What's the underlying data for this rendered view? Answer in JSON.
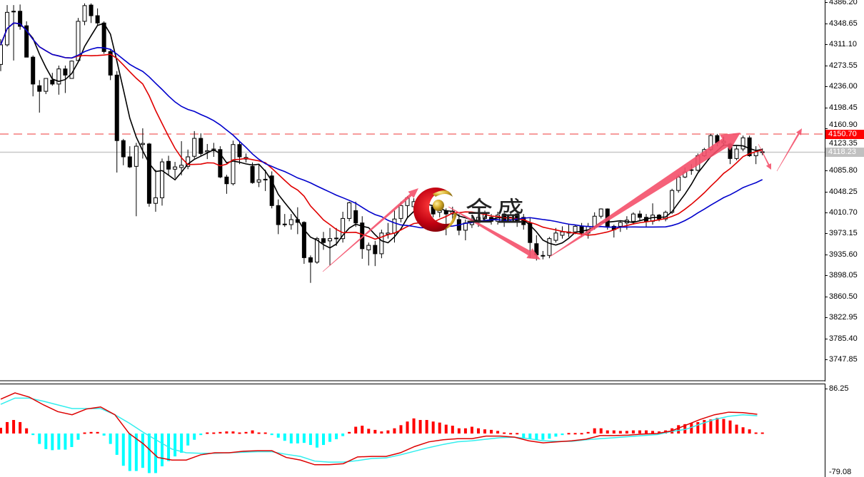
{
  "chart_data": {
    "type": "candlestick",
    "ylim": [
      3709.0,
      4390.05
    ],
    "y_ticks": [
      "4386.20",
      "4348.65",
      "4311.10",
      "4273.55",
      "4236.00",
      "4198.45",
      "4160.90",
      "4123.35",
      "4085.80",
      "4048.25",
      "4010.70",
      "3973.15",
      "3935.60",
      "3898.05",
      "3860.50",
      "3822.95",
      "3785.40",
      "3747.85"
    ],
    "candles": [
      [
        4275,
        4320,
        4263,
        4310
      ],
      [
        4310,
        4381,
        4307,
        4368
      ],
      [
        4370,
        4381,
        4282,
        4369
      ],
      [
        4370,
        4382,
        4337,
        4343
      ],
      [
        4344,
        4352,
        4288,
        4288
      ],
      [
        4288,
        4291,
        4218,
        4240
      ],
      [
        4237,
        4247,
        4189,
        4227
      ],
      [
        4227,
        4250,
        4222,
        4250
      ],
      [
        4247,
        4260,
        4237,
        4240
      ],
      [
        4240,
        4273,
        4221,
        4267
      ],
      [
        4267,
        4273,
        4224,
        4256
      ],
      [
        4250,
        4282,
        4250,
        4281
      ],
      [
        4282,
        4358,
        4278,
        4352
      ],
      [
        4352,
        4384,
        4345,
        4380
      ],
      [
        4381,
        4384,
        4349,
        4362
      ],
      [
        4362,
        4375,
        4345,
        4349
      ],
      [
        4349,
        4352,
        4294,
        4298
      ],
      [
        4298,
        4301,
        4247,
        4256
      ],
      [
        4256,
        4263,
        4082,
        4139
      ],
      [
        4139,
        4142,
        4095,
        4110
      ],
      [
        4110,
        4129,
        4090,
        4092
      ],
      [
        4093,
        4135,
        4004,
        4129
      ],
      [
        4132,
        4161,
        4107,
        4134
      ],
      [
        4133,
        4135,
        4021,
        4027
      ],
      [
        4027,
        4087,
        4012,
        4037
      ],
      [
        4037,
        4107,
        4023,
        4101
      ],
      [
        4102,
        4112,
        4078,
        4088
      ],
      [
        4088,
        4101,
        4072,
        4092
      ],
      [
        4091,
        4138,
        4077,
        4095
      ],
      [
        4093,
        4123,
        4088,
        4110
      ],
      [
        4111,
        4156,
        4107,
        4143
      ],
      [
        4143,
        4152,
        4112,
        4116
      ],
      [
        4119,
        4133,
        4106,
        4121
      ],
      [
        4121,
        4135,
        4110,
        4124
      ],
      [
        4123,
        4129,
        4072,
        4074
      ],
      [
        4074,
        4078,
        4044,
        4062
      ],
      [
        4062,
        4139,
        4059,
        4132
      ],
      [
        4132,
        4138,
        4097,
        4110
      ],
      [
        4106,
        4116,
        4100,
        4109
      ],
      [
        4093,
        4100,
        4062,
        4064
      ],
      [
        4065,
        4097,
        4056,
        4069
      ],
      [
        4069,
        4087,
        4049,
        4070
      ],
      [
        4076,
        4084,
        4018,
        4023
      ],
      [
        4023,
        4034,
        3972,
        3989
      ],
      [
        3989,
        4008,
        3985,
        3990
      ],
      [
        3989,
        4008,
        3980,
        3998
      ],
      [
        3998,
        4020,
        3972,
        3993
      ],
      [
        3993,
        3995,
        3919,
        3930
      ],
      [
        3930,
        3934,
        3885,
        3922
      ],
      [
        3922,
        3967,
        3919,
        3964
      ],
      [
        3964,
        3976,
        3944,
        3957
      ],
      [
        3960,
        3983,
        3916,
        3964
      ],
      [
        3964,
        3983,
        3951,
        3965
      ],
      [
        3964,
        4012,
        3957,
        4000
      ],
      [
        4000,
        4030,
        3995,
        4028
      ],
      [
        4014,
        4030,
        3985,
        3992
      ],
      [
        3992,
        4004,
        3928,
        3946
      ],
      [
        3944,
        3957,
        3916,
        3952
      ],
      [
        3952,
        3960,
        3915,
        3937
      ],
      [
        3937,
        3980,
        3929,
        3974
      ],
      [
        3972,
        3992,
        3964,
        3974
      ],
      [
        3974,
        4014,
        3957,
        3999
      ],
      [
        4000,
        4030,
        3993,
        4023
      ],
      [
        4023,
        4040,
        4002,
        4037
      ],
      [
        4021,
        4036,
        4014,
        4030
      ],
      [
        4027,
        4034,
        4011,
        4017
      ],
      [
        4014,
        4027,
        4008,
        4021
      ],
      [
        4021,
        4026,
        4002,
        4008
      ],
      [
        4011,
        4021,
        4002,
        4014
      ],
      [
        4014,
        4018,
        3970,
        4008
      ],
      [
        4008,
        4021,
        3995,
        4013
      ],
      [
        3998,
        4008,
        3970,
        3979
      ],
      [
        3979,
        3998,
        3961,
        3992
      ],
      [
        3989,
        4004,
        3983,
        3995
      ],
      [
        3993,
        4011,
        3985,
        4002
      ],
      [
        4000,
        4014,
        3993,
        4008
      ],
      [
        4002,
        4008,
        3989,
        3995
      ],
      [
        3995,
        4012,
        3989,
        4006
      ],
      [
        4008,
        4014,
        3985,
        3995
      ],
      [
        3998,
        4011,
        3993,
        4006
      ],
      [
        4008,
        4013,
        3985,
        3993
      ],
      [
        4002,
        4008,
        3980,
        3989
      ],
      [
        3992,
        4002,
        3929,
        3957
      ],
      [
        3955,
        3970,
        3925,
        3935
      ],
      [
        3934,
        3942,
        3927,
        3933
      ],
      [
        3934,
        3967,
        3929,
        3964
      ],
      [
        3961,
        3983,
        3957,
        3974
      ],
      [
        3970,
        3986,
        3964,
        3976
      ],
      [
        3974,
        3989,
        3967,
        3976
      ],
      [
        3976,
        3989,
        3972,
        3986
      ],
      [
        3986,
        3992,
        3967,
        3974
      ],
      [
        3974,
        3992,
        3964,
        3986
      ],
      [
        3986,
        4011,
        3980,
        4004
      ],
      [
        4004,
        4018,
        4000,
        4017
      ],
      [
        4017,
        4018,
        3980,
        3986
      ],
      [
        3986,
        3989,
        3966,
        3980
      ],
      [
        3986,
        3995,
        3976,
        3993
      ],
      [
        3992,
        4004,
        3980,
        3997
      ],
      [
        3995,
        4011,
        3989,
        4008
      ],
      [
        4008,
        4014,
        3995,
        4002
      ],
      [
        4002,
        4008,
        3985,
        3995
      ],
      [
        3995,
        4027,
        3989,
        4006
      ],
      [
        4006,
        4008,
        3995,
        3999
      ],
      [
        3999,
        4014,
        3995,
        4011
      ],
      [
        4011,
        4053,
        4008,
        4050
      ],
      [
        4050,
        4078,
        4046,
        4074
      ],
      [
        4074,
        4091,
        4072,
        4083
      ],
      [
        4086,
        4097,
        4078,
        4087
      ],
      [
        4086,
        4116,
        4084,
        4112
      ],
      [
        4112,
        4126,
        4110,
        4123
      ],
      [
        4123,
        4151,
        4120,
        4148
      ],
      [
        4148,
        4151,
        4129,
        4135
      ],
      [
        4135,
        4146,
        4129,
        4138
      ],
      [
        4133,
        4135,
        4097,
        4107
      ],
      [
        4107,
        4129,
        4104,
        4124
      ],
      [
        4124,
        4148,
        4120,
        4144
      ],
      [
        4144,
        4148,
        4110,
        4112
      ],
      [
        4112,
        4129,
        4097,
        4119
      ],
      [
        4119,
        4125,
        4113,
        4118.23
      ]
    ],
    "horizontal_lines": {
      "resistance": {
        "value": 4150.7,
        "label": "4150.70",
        "style": "dashed",
        "color": "#f06060"
      },
      "bid": {
        "value": 4118.23,
        "label": "4118.23",
        "style": "solid",
        "color": "#c8c8c8"
      }
    },
    "indicator": {
      "type": "macd",
      "top_label": "86.25",
      "bottom_label": "-79.08",
      "ylim": [
        -79.08,
        86.25
      ],
      "macd": [
        66,
        78,
        70,
        55,
        42,
        36,
        47,
        51,
        36,
        0,
        -20,
        -46,
        -51,
        -51,
        -41,
        -37,
        -37,
        -34,
        -33,
        -33,
        -46,
        -51,
        -60,
        -60,
        -58,
        -45,
        -44,
        -44,
        -37,
        -25,
        -16,
        -12,
        -10,
        -10,
        -5,
        -5,
        -7,
        -14,
        -18,
        -16,
        -14,
        -11,
        -4,
        -4,
        -3,
        -1,
        0,
        5,
        16,
        27,
        36,
        41,
        40,
        37
      ],
      "signal": [
        56,
        68,
        68,
        62,
        55,
        48,
        48,
        48,
        36,
        20,
        2,
        -14,
        -30,
        -37,
        -38,
        -38,
        -37,
        -36,
        -35,
        -35,
        -40,
        -44,
        -53,
        -55,
        -55,
        -52,
        -48,
        -47,
        -41,
        -34,
        -27,
        -21,
        -16,
        -14,
        -11,
        -8,
        -7,
        -10,
        -14,
        -15,
        -15,
        -12,
        -10,
        -8,
        -6,
        -4,
        -2,
        4,
        8,
        18,
        27,
        33,
        36,
        34
      ],
      "histogram": [
        11,
        22,
        26,
        22,
        10,
        -3,
        -20,
        -30,
        -32,
        -31,
        -31,
        -26,
        -12,
        2,
        3,
        3,
        -4,
        -20,
        -41,
        -62,
        -72,
        -72,
        -66,
        -76,
        -76,
        -63,
        -53,
        -44,
        -37,
        -23,
        -12,
        -3,
        2,
        2,
        3,
        4,
        4,
        2,
        3,
        6,
        2,
        2,
        -3,
        -8,
        -14,
        -19,
        -19,
        -18,
        -22,
        -27,
        -22,
        -16,
        -11,
        -5,
        3,
        13,
        15,
        9,
        7,
        4,
        6,
        10,
        16,
        23,
        29,
        26,
        26,
        23,
        21,
        17,
        15,
        10,
        10,
        13,
        10,
        8,
        7,
        5,
        2,
        1,
        1,
        -9,
        -10,
        -12,
        -12,
        -10,
        -6,
        -3,
        1,
        1,
        1,
        3,
        10,
        10,
        6,
        6,
        5,
        5,
        6,
        6,
        6,
        5,
        4,
        6,
        10,
        16,
        18,
        20,
        22,
        26,
        27,
        30,
        28,
        25,
        17,
        12,
        8,
        2,
        2
      ]
    }
  },
  "logo": {
    "text": "金盛"
  },
  "colors": {
    "ma_fast": "#000000",
    "ma_mid": "#e00000",
    "ma_slow": "#0000cc",
    "macd_line": "#dd0000",
    "signal_line": "#33eeee",
    "hist_positive": "#ff0000",
    "hist_negative": "#00ffff",
    "arrow": "#f4506a",
    "resistance_label_bg": "#ff0000",
    "bid_label_bg": "#c0c0c0"
  }
}
